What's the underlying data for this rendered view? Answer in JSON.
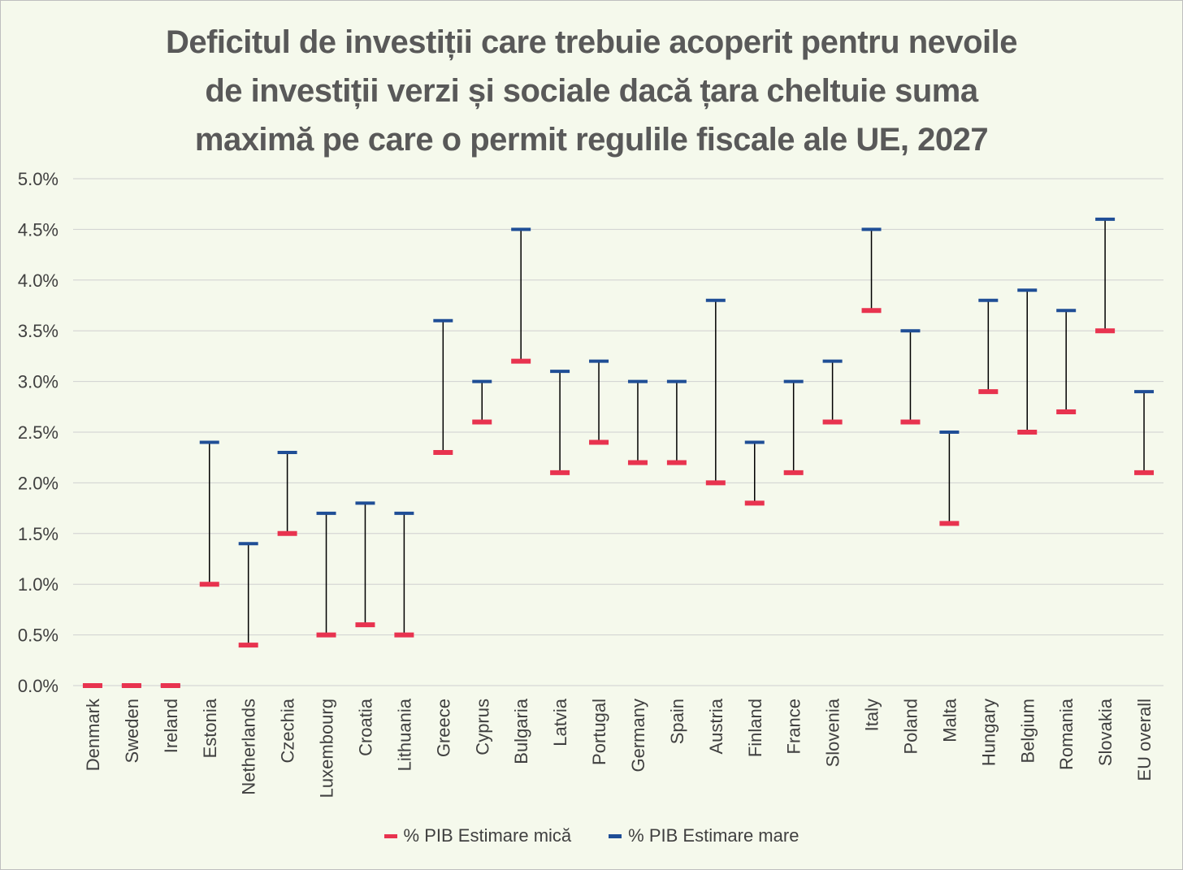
{
  "chart_data": {
    "type": "range",
    "title": "Deficitul de investiții care trebuie acoperit pentru nevoile\nde investiții verzi și sociale dacă țara cheltuie suma\nmaximă pe care o permit regulile fiscale ale UE, 2027",
    "categories": [
      "Denmark",
      "Sweden",
      "Ireland",
      "Estonia",
      "Netherlands",
      "Czechia",
      "Luxembourg",
      "Croatia",
      "Lithuania",
      "Greece",
      "Cyprus",
      "Bulgaria",
      "Latvia",
      "Portugal",
      "Germany",
      "Spain",
      "Austria",
      "Finland",
      "France",
      "Slovenia",
      "Italy",
      "Poland",
      "Malta",
      "Hungary",
      "Belgium",
      "Romania",
      "Slovakia",
      "EU overall"
    ],
    "series": [
      {
        "name": "% PIB Estimare mică",
        "color": "#e8334f",
        "values": [
          0.0,
          0.0,
          0.0,
          1.0,
          0.4,
          1.5,
          0.5,
          0.6,
          0.5,
          2.3,
          2.6,
          3.2,
          2.1,
          2.4,
          2.2,
          2.2,
          2.0,
          1.8,
          2.1,
          2.6,
          3.7,
          2.6,
          1.6,
          2.9,
          2.5,
          2.7,
          3.5,
          2.1
        ]
      },
      {
        "name": "% PIB Estimare mare",
        "color": "#1f4e96",
        "values": [
          0.0,
          0.0,
          0.0,
          2.4,
          1.4,
          2.3,
          1.7,
          1.8,
          1.7,
          3.6,
          3.0,
          4.5,
          3.1,
          3.2,
          3.0,
          3.0,
          3.8,
          2.4,
          3.0,
          3.2,
          4.5,
          3.5,
          2.5,
          3.8,
          3.9,
          3.7,
          4.6,
          2.9
        ]
      }
    ],
    "y_ticks": [
      "0.0%",
      "0.5%",
      "1.0%",
      "1.5%",
      "2.0%",
      "2.5%",
      "3.0%",
      "3.5%",
      "4.0%",
      "4.5%",
      "5.0%"
    ],
    "ylim": [
      0,
      5
    ],
    "y_unit": "%",
    "grid": true,
    "legend_position": "bottom",
    "colors": {
      "background": "#f5f9ec",
      "gridline": "#d0d0d0",
      "range_line": "#000000",
      "text": "#404040",
      "title": "#595959"
    }
  }
}
